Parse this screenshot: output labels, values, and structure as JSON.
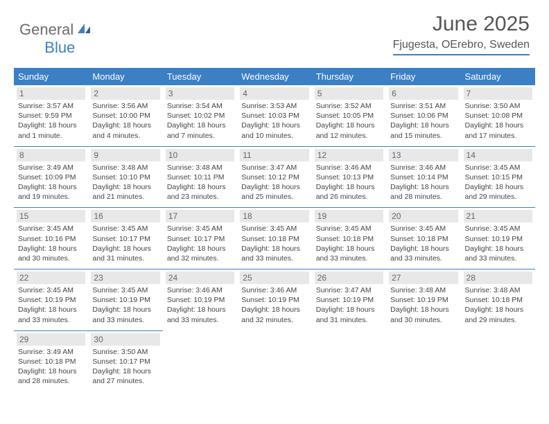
{
  "logo": {
    "part1": "General",
    "part2": "Blue"
  },
  "title": "June 2025",
  "location": "Fjugesta, OErebro, Sweden",
  "colors": {
    "accent": "#3b7fc4",
    "header_bg": "#3b7fc4",
    "header_text": "#ffffff",
    "daynum_bg": "#e8e8e8",
    "text": "#444444",
    "logo_gray": "#6b6b6b"
  },
  "weekdays": [
    "Sunday",
    "Monday",
    "Tuesday",
    "Wednesday",
    "Thursday",
    "Friday",
    "Saturday"
  ],
  "days": [
    {
      "n": 1,
      "sr": "3:57 AM",
      "ss": "9:59 PM",
      "dl": "18 hours and 1 minute."
    },
    {
      "n": 2,
      "sr": "3:56 AM",
      "ss": "10:00 PM",
      "dl": "18 hours and 4 minutes."
    },
    {
      "n": 3,
      "sr": "3:54 AM",
      "ss": "10:02 PM",
      "dl": "18 hours and 7 minutes."
    },
    {
      "n": 4,
      "sr": "3:53 AM",
      "ss": "10:03 PM",
      "dl": "18 hours and 10 minutes."
    },
    {
      "n": 5,
      "sr": "3:52 AM",
      "ss": "10:05 PM",
      "dl": "18 hours and 12 minutes."
    },
    {
      "n": 6,
      "sr": "3:51 AM",
      "ss": "10:06 PM",
      "dl": "18 hours and 15 minutes."
    },
    {
      "n": 7,
      "sr": "3:50 AM",
      "ss": "10:08 PM",
      "dl": "18 hours and 17 minutes."
    },
    {
      "n": 8,
      "sr": "3:49 AM",
      "ss": "10:09 PM",
      "dl": "18 hours and 19 minutes."
    },
    {
      "n": 9,
      "sr": "3:48 AM",
      "ss": "10:10 PM",
      "dl": "18 hours and 21 minutes."
    },
    {
      "n": 10,
      "sr": "3:48 AM",
      "ss": "10:11 PM",
      "dl": "18 hours and 23 minutes."
    },
    {
      "n": 11,
      "sr": "3:47 AM",
      "ss": "10:12 PM",
      "dl": "18 hours and 25 minutes."
    },
    {
      "n": 12,
      "sr": "3:46 AM",
      "ss": "10:13 PM",
      "dl": "18 hours and 26 minutes."
    },
    {
      "n": 13,
      "sr": "3:46 AM",
      "ss": "10:14 PM",
      "dl": "18 hours and 28 minutes."
    },
    {
      "n": 14,
      "sr": "3:45 AM",
      "ss": "10:15 PM",
      "dl": "18 hours and 29 minutes."
    },
    {
      "n": 15,
      "sr": "3:45 AM",
      "ss": "10:16 PM",
      "dl": "18 hours and 30 minutes."
    },
    {
      "n": 16,
      "sr": "3:45 AM",
      "ss": "10:17 PM",
      "dl": "18 hours and 31 minutes."
    },
    {
      "n": 17,
      "sr": "3:45 AM",
      "ss": "10:17 PM",
      "dl": "18 hours and 32 minutes."
    },
    {
      "n": 18,
      "sr": "3:45 AM",
      "ss": "10:18 PM",
      "dl": "18 hours and 33 minutes."
    },
    {
      "n": 19,
      "sr": "3:45 AM",
      "ss": "10:18 PM",
      "dl": "18 hours and 33 minutes."
    },
    {
      "n": 20,
      "sr": "3:45 AM",
      "ss": "10:18 PM",
      "dl": "18 hours and 33 minutes."
    },
    {
      "n": 21,
      "sr": "3:45 AM",
      "ss": "10:19 PM",
      "dl": "18 hours and 33 minutes."
    },
    {
      "n": 22,
      "sr": "3:45 AM",
      "ss": "10:19 PM",
      "dl": "18 hours and 33 minutes."
    },
    {
      "n": 23,
      "sr": "3:45 AM",
      "ss": "10:19 PM",
      "dl": "18 hours and 33 minutes."
    },
    {
      "n": 24,
      "sr": "3:46 AM",
      "ss": "10:19 PM",
      "dl": "18 hours and 33 minutes."
    },
    {
      "n": 25,
      "sr": "3:46 AM",
      "ss": "10:19 PM",
      "dl": "18 hours and 32 minutes."
    },
    {
      "n": 26,
      "sr": "3:47 AM",
      "ss": "10:19 PM",
      "dl": "18 hours and 31 minutes."
    },
    {
      "n": 27,
      "sr": "3:48 AM",
      "ss": "10:19 PM",
      "dl": "18 hours and 30 minutes."
    },
    {
      "n": 28,
      "sr": "3:48 AM",
      "ss": "10:18 PM",
      "dl": "18 hours and 29 minutes."
    },
    {
      "n": 29,
      "sr": "3:49 AM",
      "ss": "10:18 PM",
      "dl": "18 hours and 28 minutes."
    },
    {
      "n": 30,
      "sr": "3:50 AM",
      "ss": "10:17 PM",
      "dl": "18 hours and 27 minutes."
    }
  ],
  "labels": {
    "sunrise": "Sunrise:",
    "sunset": "Sunset:",
    "daylight": "Daylight:"
  },
  "layout": {
    "start_weekday": 0,
    "total_cells": 35
  }
}
